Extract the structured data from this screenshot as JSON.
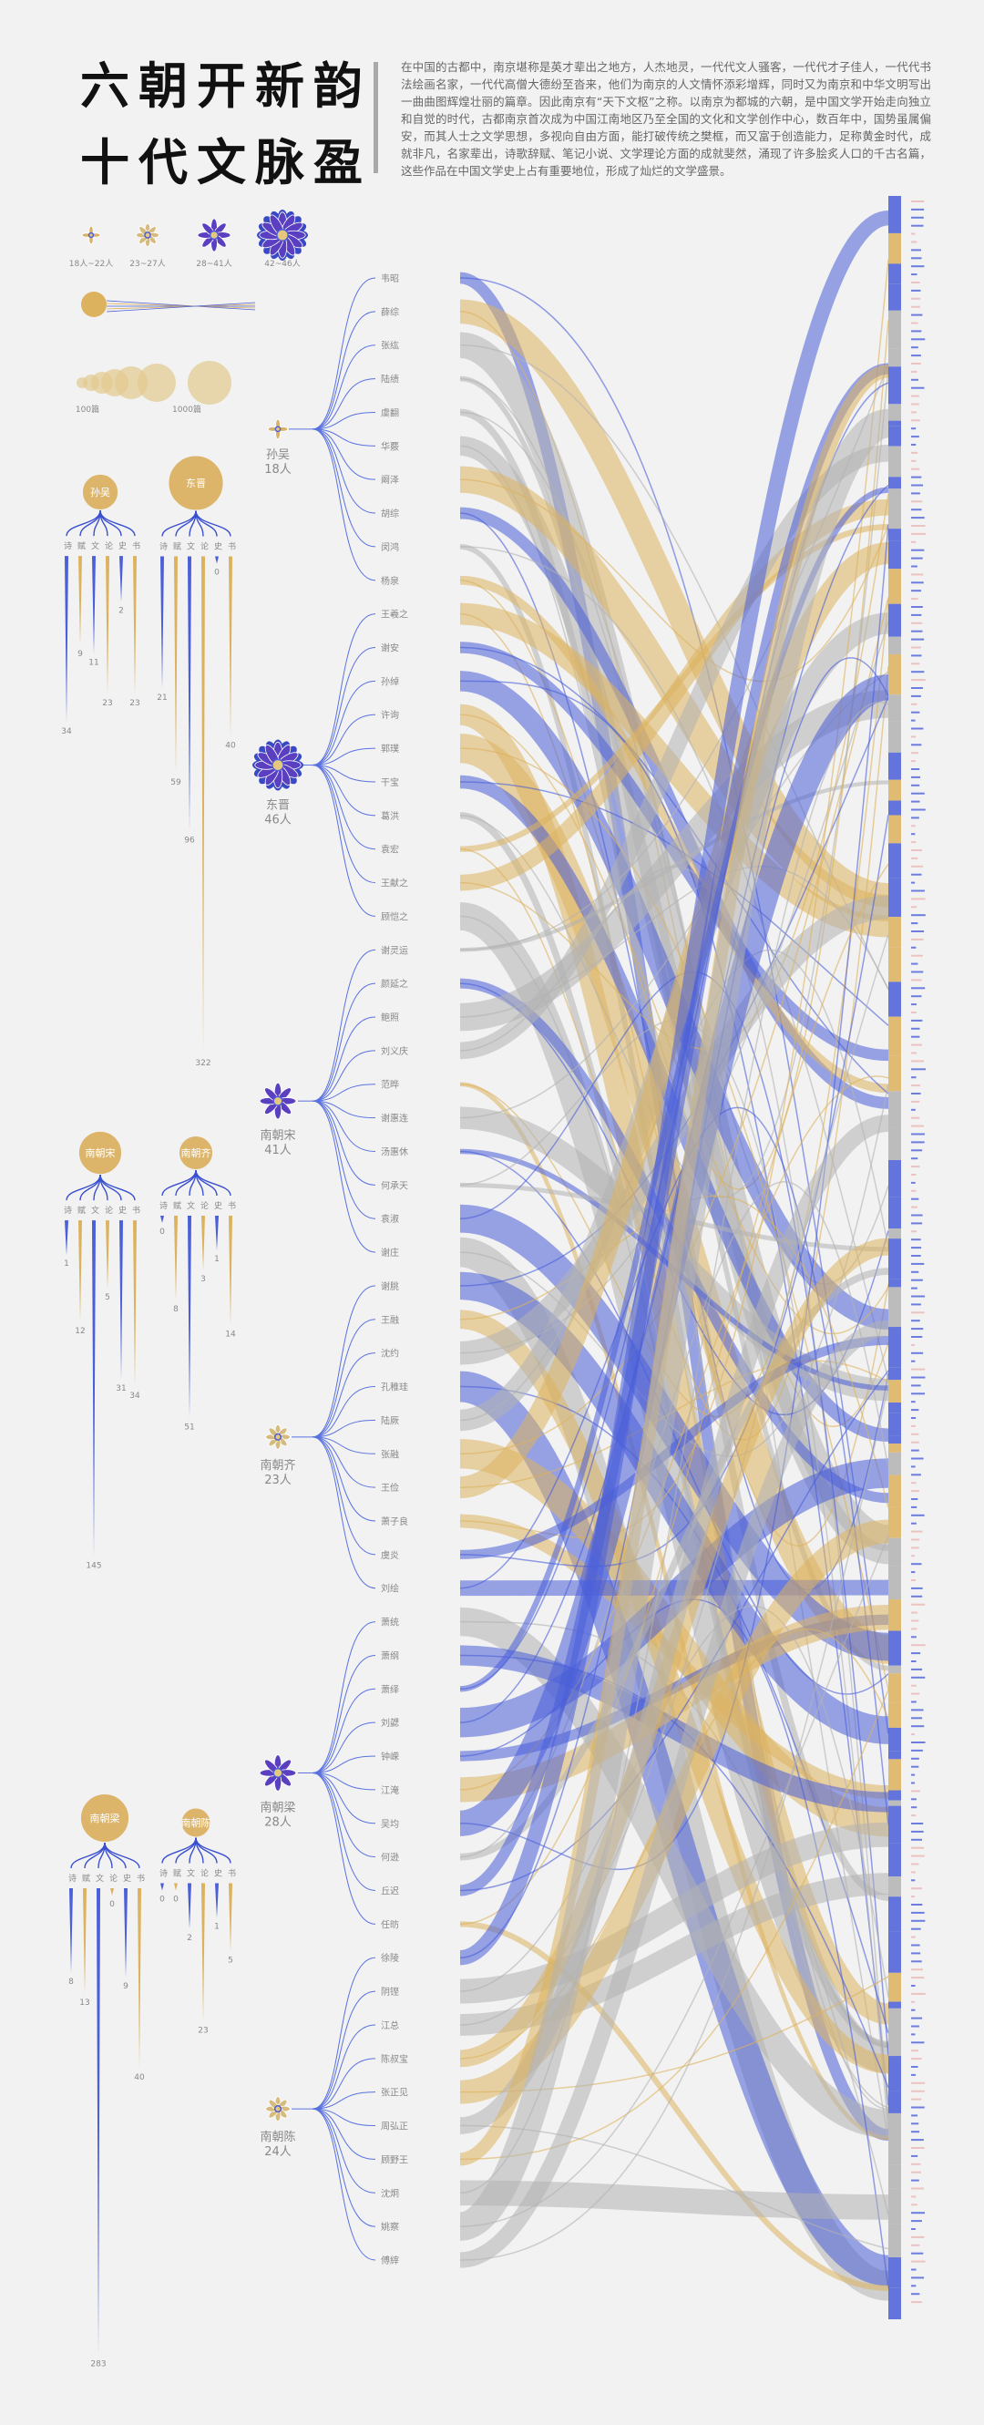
{
  "header": {
    "title": [
      "六朝开新韵",
      "十代文脉盈"
    ],
    "intro": "在中国的古都中，南京堪称是英才辈出之地方，人杰地灵，一代代文人骚客，一代代才子佳人，一代代书法绘画名家，一代代高僧大德纷至沓来，他们为南京的人文情怀添彩增辉，同时又为南京和中华文明写出一曲曲图辉煌壮丽的篇章。因此南京有“天下文枢”之称。以南京为都城的六朝，是中国文学开始走向独立和自觉的时代，古都南京首次成为中国江南地区乃至全国的文化和文学创作中心，数百年中，国势虽属偏安，而其人士之文学思想，多视向自由方面，能打破传统之樊框，而又富于创造能力，足称黄金时代，成就非凡，名家辈出，诗歌辞赋、笔记小说、文学理论方面的成就斐然，涌现了许多脍炙人口的千古名篇，这些作品在中国文学史上占有重要地位，形成了灿烂的文学盛景。"
  },
  "legend": {
    "tiers": [
      "18人~22人",
      "23~27人",
      "28~41人",
      "42~46人"
    ],
    "sizes": [
      "100篇",
      "1000篇"
    ]
  },
  "genres": [
    "诗",
    "赋",
    "文",
    "论",
    "史",
    "书"
  ],
  "dynasties": [
    {
      "name": "孙吴",
      "count": "18人",
      "values": [
        34,
        9,
        11,
        23,
        2,
        23
      ],
      "poets": [
        "韦昭",
        "薛综",
        "张纮",
        "陆绩",
        "虞翻",
        "华覈",
        "阚泽",
        "胡综",
        "闵鸿",
        "杨泉"
      ]
    },
    {
      "name": "东晋",
      "count": "46人",
      "values": [
        21,
        59,
        96,
        322,
        0,
        40
      ],
      "poets": [
        "王羲之",
        "谢安",
        "孙绰",
        "许询",
        "郭璞",
        "干宝",
        "葛洪",
        "袁宏",
        "王献之",
        "顾恺之"
      ]
    },
    {
      "name": "南朝宋",
      "count": "41人",
      "values": [
        1,
        12,
        145,
        5,
        31,
        34
      ],
      "poets": [
        "谢灵运",
        "颜延之",
        "鲍照",
        "刘义庆",
        "范晔",
        "谢惠连",
        "汤惠休",
        "何承天",
        "袁淑",
        "谢庄"
      ]
    },
    {
      "name": "南朝齐",
      "count": "23人",
      "values": [
        0,
        8,
        51,
        3,
        1,
        14
      ],
      "poets": [
        "谢朓",
        "王融",
        "沈约",
        "孔稚珪",
        "陆厥",
        "张融",
        "王俭",
        "萧子良",
        "虞炎",
        "刘绘"
      ]
    },
    {
      "name": "南朝梁",
      "count": "28人",
      "values": [
        8,
        13,
        283,
        0,
        9,
        40
      ],
      "poets": [
        "萧统",
        "萧纲",
        "萧绎",
        "刘勰",
        "钟嵘",
        "江淹",
        "吴均",
        "何逊",
        "丘迟",
        "任昉"
      ]
    },
    {
      "name": "南朝陈",
      "count": "24人",
      "values": [
        0,
        0,
        2,
        23,
        1,
        5
      ],
      "poets": [
        "徐陵",
        "阴铿",
        "江总",
        "陈叔宝",
        "张正见",
        "周弘正",
        "顾野王",
        "沈炯",
        "姚察",
        "傅縡"
      ]
    }
  ]
}
